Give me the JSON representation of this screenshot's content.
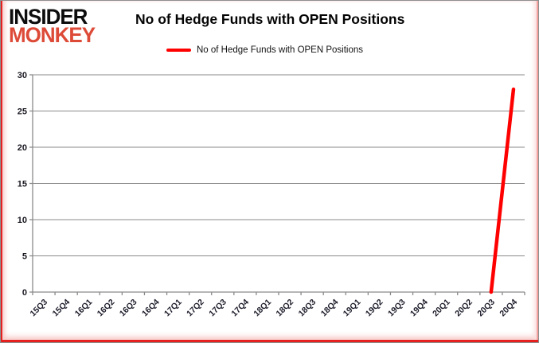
{
  "logo": {
    "line1": "INSIDER",
    "line2": "MONKEY"
  },
  "legend": {
    "swatch": "red-line"
  },
  "colors": {
    "accent": "#FF0000",
    "logo_red": "#DD4B38",
    "frame_red": "#E5201E",
    "grid": "#8A8A8A"
  },
  "chart_data": {
    "type": "line",
    "title": "No of Hedge Funds with OPEN Positions",
    "categories": [
      "15Q3",
      "15Q4",
      "16Q1",
      "16Q2",
      "16Q3",
      "16Q4",
      "17Q1",
      "17Q2",
      "17Q3",
      "17Q4",
      "18Q1",
      "18Q2",
      "18Q3",
      "18Q4",
      "19Q1",
      "19Q2",
      "19Q3",
      "19Q4",
      "20Q1",
      "20Q2",
      "20Q3",
      "20Q4"
    ],
    "series": [
      {
        "name": "No of Hedge Funds with OPEN Positions",
        "color": "#FF0000",
        "values": [
          null,
          null,
          null,
          null,
          null,
          null,
          null,
          null,
          null,
          null,
          null,
          null,
          null,
          null,
          null,
          null,
          null,
          null,
          null,
          null,
          0,
          28
        ]
      }
    ],
    "xlabel": "",
    "ylabel": "",
    "ylim": [
      0,
      30
    ],
    "yticks": [
      0,
      5,
      10,
      15,
      20,
      25,
      30
    ],
    "grid": true,
    "legend_position": "top"
  }
}
